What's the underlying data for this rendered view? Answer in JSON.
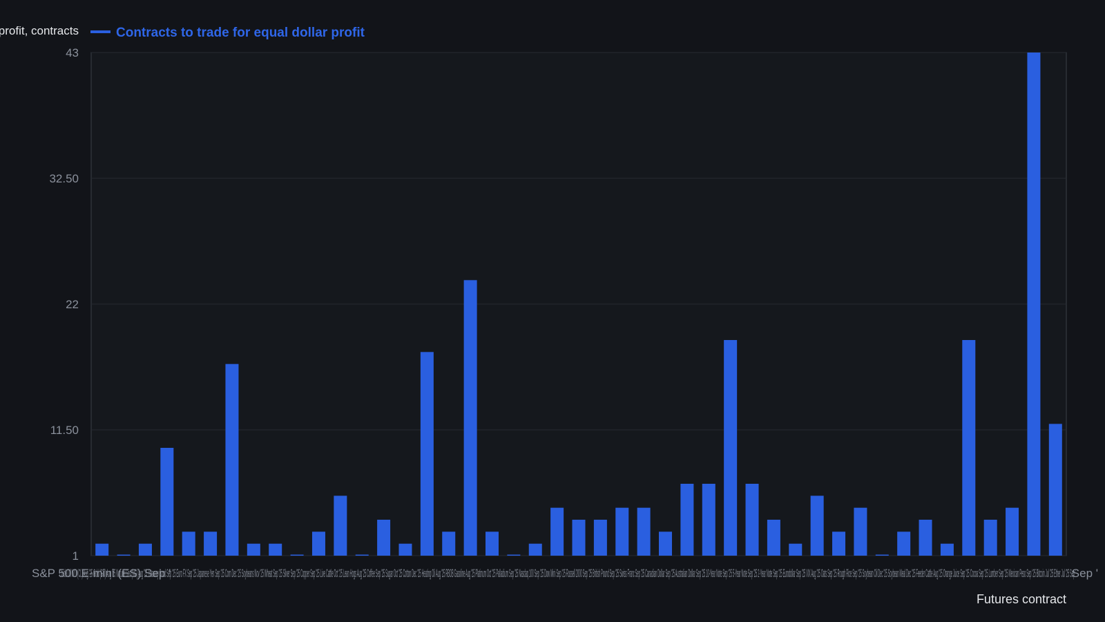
{
  "colors": {
    "background": "#121419",
    "plot_background": "#15181d",
    "bar": "#2a5fe0",
    "legend_text": "#2f66e8",
    "axis_text": "#8b919c",
    "label_text": "#e6e8eb",
    "grid": "#262a31",
    "axis_line": "#3a3f48"
  },
  "chart_data": {
    "type": "bar",
    "title": "",
    "ylabel": "Contracts to trade for equal dollar profit, contracts",
    "xlabel": "Futures contract",
    "ylim": [
      1,
      43
    ],
    "yticks": [
      "1",
      "11.50",
      "22",
      "32.50",
      "43"
    ],
    "ytick_values": [
      1,
      11.5,
      22,
      32.5,
      43
    ],
    "grid": true,
    "legend_position": "top-left",
    "series": [
      {
        "name": "Contracts to trade for equal dollar profit",
        "values": [
          2,
          1,
          2,
          10,
          3,
          3,
          17,
          2,
          2,
          1,
          3,
          6,
          1,
          4,
          2,
          18,
          3,
          24,
          3,
          1,
          2,
          5,
          4,
          4,
          5,
          5,
          3,
          7,
          7,
          19,
          7,
          4,
          2,
          6,
          3,
          5,
          1,
          3,
          4,
          2,
          19,
          4,
          5,
          43,
          12
        ]
      }
    ],
    "first_category_label": "S&P 500 E-mini (ES) Sep '",
    "last_category_label": "Sep '",
    "overlapping_category_text": "Crude Oil WTI (CL) Aug '25 Gold (GC) Aug '25 Natural Gas (NG) Aug '25 Treasury Bond Sep '25 Euro FX Sep '25 Japanese Yen Sep '25 Corn Dec '25 Soybeans Nov '25 Wheat Sep '25 Silver Sep '25 Copper Sep '25 Live Cattle Oct '25 Lean Hogs Aug '25 Coffee Sep '25 Sugar Oct '25 Cotton Dec '25 Heating Oil Aug '25 RBOB Gasoline Aug '25 Platinum Oct '25 Palladium Sep '25 Nasdaq 100 Sep '25 Dow Mini Sep '25 Russell 2000 Sep '25 British Pound Sep '25 Swiss Franc Sep '25 Canadian Dollar Sep '25 Australian Dollar Sep '25 10-Year Note Sep '25 5-Year Note Sep '25 2-Year Note Sep '25 Eurodollar Sep '25 VIX Aug '25 Oats Sep '25 Rough Rice Sep '25 Soybean Oil Dec '25 Soybean Meal Dec '25 Feeder Cattle Aug '25 Orange Juice Sep '25 Cocoa Sep '25 Lumber Sep '25 Mexican Peso Sep '25 Bitcoin Jul '25 Ether Jul '25 Sep '"
  }
}
